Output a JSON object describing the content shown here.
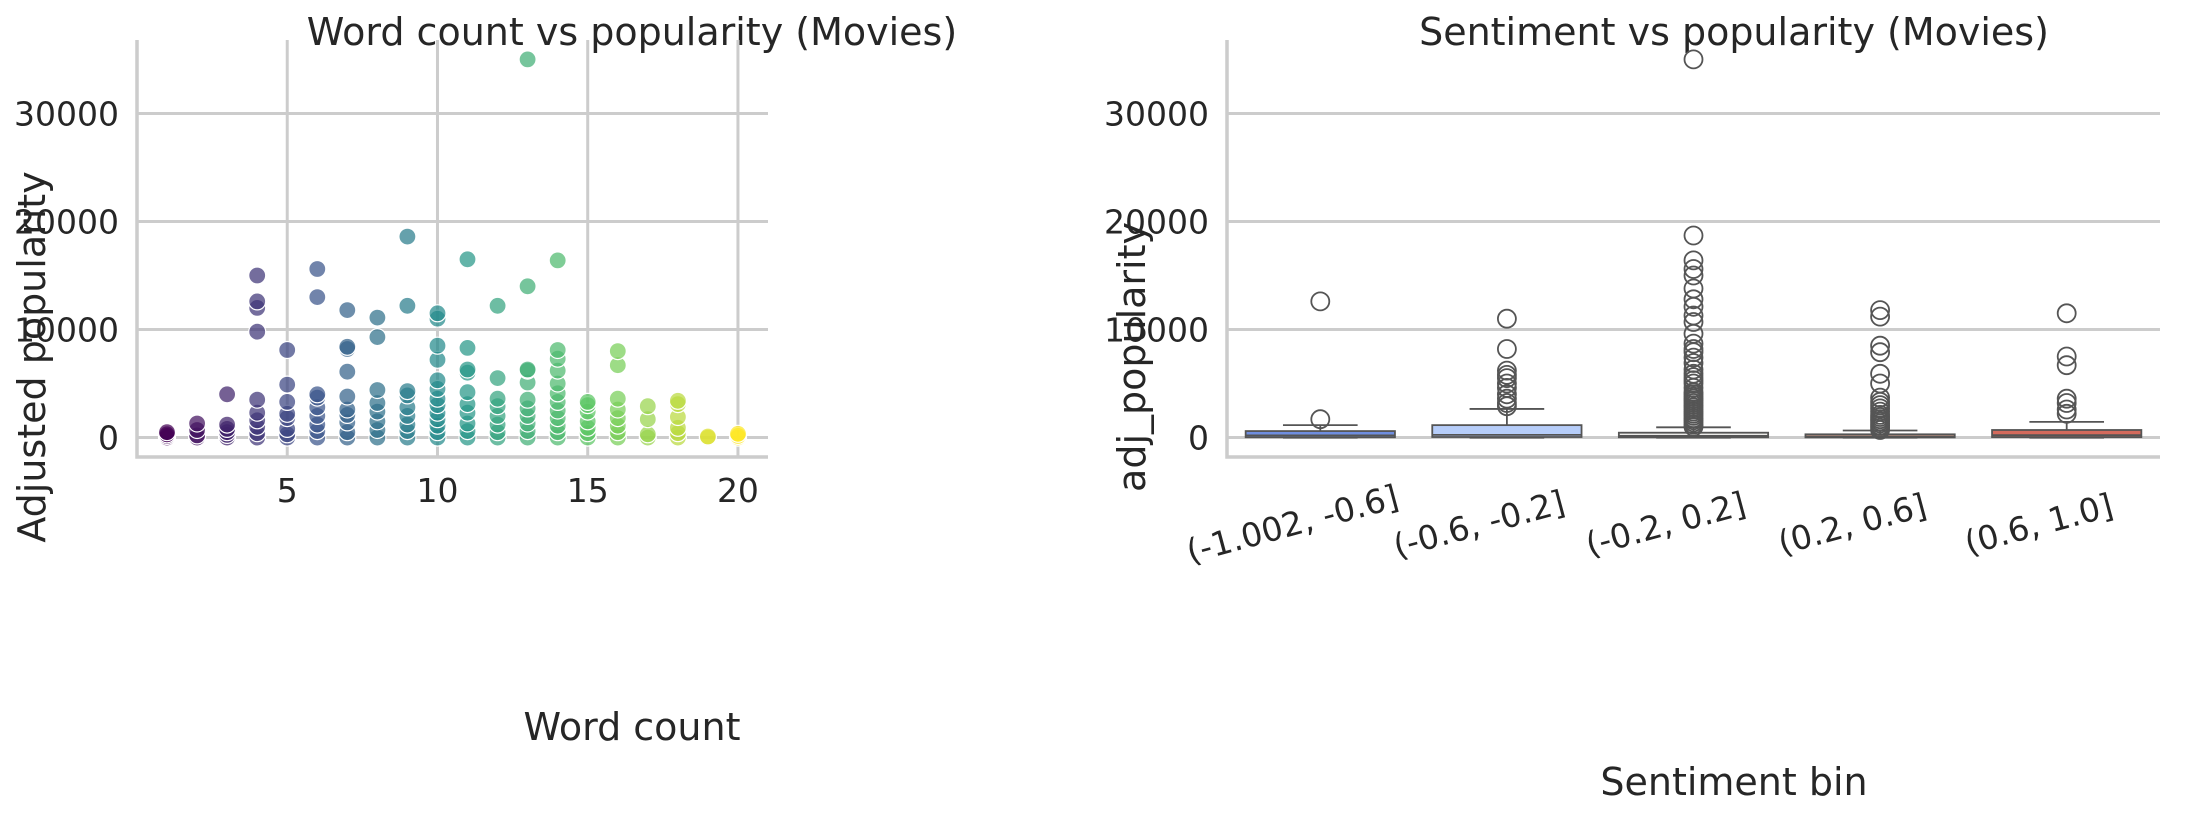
{
  "chart_data": [
    {
      "type": "scatter",
      "title": "Word count vs popularity (Movies)",
      "xlabel": "Word count",
      "ylabel": "Adjusted popularity",
      "xlim": [
        0,
        21
      ],
      "ylim": [
        -1800,
        36800
      ],
      "xticks": [
        5,
        10,
        15,
        20
      ],
      "yticks": [
        0,
        10000,
        20000,
        30000
      ],
      "grid": true,
      "colormap": "viridis",
      "x_range_for_color": [
        1,
        20
      ],
      "points": [
        {
          "x": 1,
          "y": 0
        },
        {
          "x": 1,
          "y": 150
        },
        {
          "x": 1,
          "y": 300
        },
        {
          "x": 1,
          "y": 500
        },
        {
          "x": 2,
          "y": 0
        },
        {
          "x": 2,
          "y": 200
        },
        {
          "x": 2,
          "y": 700
        },
        {
          "x": 2,
          "y": 1300
        },
        {
          "x": 3,
          "y": 0
        },
        {
          "x": 3,
          "y": 250
        },
        {
          "x": 3,
          "y": 500
        },
        {
          "x": 3,
          "y": 800
        },
        {
          "x": 3,
          "y": 1200
        },
        {
          "x": 3,
          "y": 4000
        },
        {
          "x": 4,
          "y": 0
        },
        {
          "x": 4,
          "y": 400
        },
        {
          "x": 4,
          "y": 1000
        },
        {
          "x": 4,
          "y": 1600
        },
        {
          "x": 4,
          "y": 2300
        },
        {
          "x": 4,
          "y": 3500
        },
        {
          "x": 4,
          "y": 9800
        },
        {
          "x": 4,
          "y": 12000
        },
        {
          "x": 4,
          "y": 12600
        },
        {
          "x": 4,
          "y": 15000
        },
        {
          "x": 5,
          "y": 0
        },
        {
          "x": 5,
          "y": 300
        },
        {
          "x": 5,
          "y": 800
        },
        {
          "x": 5,
          "y": 1800
        },
        {
          "x": 5,
          "y": 2200
        },
        {
          "x": 5,
          "y": 3300
        },
        {
          "x": 5,
          "y": 4900
        },
        {
          "x": 5,
          "y": 8100
        },
        {
          "x": 6,
          "y": 0
        },
        {
          "x": 6,
          "y": 600
        },
        {
          "x": 6,
          "y": 1200
        },
        {
          "x": 6,
          "y": 2000
        },
        {
          "x": 6,
          "y": 2800
        },
        {
          "x": 6,
          "y": 3700
        },
        {
          "x": 6,
          "y": 4000
        },
        {
          "x": 6,
          "y": 13000
        },
        {
          "x": 6,
          "y": 15600
        },
        {
          "x": 7,
          "y": 0
        },
        {
          "x": 7,
          "y": 500
        },
        {
          "x": 7,
          "y": 1400
        },
        {
          "x": 7,
          "y": 2100
        },
        {
          "x": 7,
          "y": 2600
        },
        {
          "x": 7,
          "y": 3800
        },
        {
          "x": 7,
          "y": 6100
        },
        {
          "x": 7,
          "y": 8200
        },
        {
          "x": 7,
          "y": 8400
        },
        {
          "x": 7,
          "y": 11800
        },
        {
          "x": 8,
          "y": 0
        },
        {
          "x": 8,
          "y": 700
        },
        {
          "x": 8,
          "y": 1500
        },
        {
          "x": 8,
          "y": 2400
        },
        {
          "x": 8,
          "y": 3200
        },
        {
          "x": 8,
          "y": 4400
        },
        {
          "x": 8,
          "y": 9300
        },
        {
          "x": 8,
          "y": 11100
        },
        {
          "x": 9,
          "y": 0
        },
        {
          "x": 9,
          "y": 600
        },
        {
          "x": 9,
          "y": 1200
        },
        {
          "x": 9,
          "y": 2000
        },
        {
          "x": 9,
          "y": 2800
        },
        {
          "x": 9,
          "y": 3900
        },
        {
          "x": 9,
          "y": 4300
        },
        {
          "x": 9,
          "y": 12200
        },
        {
          "x": 9,
          "y": 18600
        },
        {
          "x": 10,
          "y": 0
        },
        {
          "x": 10,
          "y": 500
        },
        {
          "x": 10,
          "y": 1100
        },
        {
          "x": 10,
          "y": 1700
        },
        {
          "x": 10,
          "y": 2300
        },
        {
          "x": 10,
          "y": 3000
        },
        {
          "x": 10,
          "y": 3600
        },
        {
          "x": 10,
          "y": 4500
        },
        {
          "x": 10,
          "y": 5300
        },
        {
          "x": 10,
          "y": 7200
        },
        {
          "x": 10,
          "y": 8500
        },
        {
          "x": 10,
          "y": 11000
        },
        {
          "x": 10,
          "y": 11500
        },
        {
          "x": 11,
          "y": 0
        },
        {
          "x": 11,
          "y": 600
        },
        {
          "x": 11,
          "y": 1300
        },
        {
          "x": 11,
          "y": 2300
        },
        {
          "x": 11,
          "y": 3100
        },
        {
          "x": 11,
          "y": 4200
        },
        {
          "x": 11,
          "y": 6000
        },
        {
          "x": 11,
          "y": 6300
        },
        {
          "x": 11,
          "y": 8300
        },
        {
          "x": 11,
          "y": 16500
        },
        {
          "x": 12,
          "y": 0
        },
        {
          "x": 12,
          "y": 500
        },
        {
          "x": 12,
          "y": 1200
        },
        {
          "x": 12,
          "y": 2000
        },
        {
          "x": 12,
          "y": 2900
        },
        {
          "x": 12,
          "y": 3600
        },
        {
          "x": 12,
          "y": 5500
        },
        {
          "x": 12,
          "y": 12200
        },
        {
          "x": 13,
          "y": 0
        },
        {
          "x": 13,
          "y": 600
        },
        {
          "x": 13,
          "y": 1300
        },
        {
          "x": 13,
          "y": 2000
        },
        {
          "x": 13,
          "y": 2700
        },
        {
          "x": 13,
          "y": 3500
        },
        {
          "x": 13,
          "y": 5100
        },
        {
          "x": 13,
          "y": 6200
        },
        {
          "x": 13,
          "y": 6300
        },
        {
          "x": 13,
          "y": 14000
        },
        {
          "x": 13,
          "y": 35000
        },
        {
          "x": 14,
          "y": 0
        },
        {
          "x": 14,
          "y": 500
        },
        {
          "x": 14,
          "y": 1100
        },
        {
          "x": 14,
          "y": 1800
        },
        {
          "x": 14,
          "y": 2500
        },
        {
          "x": 14,
          "y": 3300
        },
        {
          "x": 14,
          "y": 4100
        },
        {
          "x": 14,
          "y": 5000
        },
        {
          "x": 14,
          "y": 6200
        },
        {
          "x": 14,
          "y": 7300
        },
        {
          "x": 14,
          "y": 8100
        },
        {
          "x": 14,
          "y": 16400
        },
        {
          "x": 15,
          "y": 0
        },
        {
          "x": 15,
          "y": 400
        },
        {
          "x": 15,
          "y": 900
        },
        {
          "x": 15,
          "y": 1500
        },
        {
          "x": 15,
          "y": 2400
        },
        {
          "x": 15,
          "y": 3000
        },
        {
          "x": 15,
          "y": 3300
        },
        {
          "x": 16,
          "y": 0
        },
        {
          "x": 16,
          "y": 500
        },
        {
          "x": 16,
          "y": 1100
        },
        {
          "x": 16,
          "y": 1800
        },
        {
          "x": 16,
          "y": 2600
        },
        {
          "x": 16,
          "y": 3600
        },
        {
          "x": 16,
          "y": 6700
        },
        {
          "x": 16,
          "y": 8000
        },
        {
          "x": 17,
          "y": 0
        },
        {
          "x": 17,
          "y": 300
        },
        {
          "x": 17,
          "y": 1700
        },
        {
          "x": 17,
          "y": 2900
        },
        {
          "x": 18,
          "y": 0
        },
        {
          "x": 18,
          "y": 400
        },
        {
          "x": 18,
          "y": 900
        },
        {
          "x": 18,
          "y": 1900
        },
        {
          "x": 18,
          "y": 3100
        },
        {
          "x": 18,
          "y": 3400
        },
        {
          "x": 19,
          "y": 0
        },
        {
          "x": 19,
          "y": 100
        },
        {
          "x": 20,
          "y": 0
        },
        {
          "x": 20,
          "y": 150
        },
        {
          "x": 20,
          "y": 350
        }
      ]
    },
    {
      "type": "box",
      "title": "Sentiment vs popularity (Movies)",
      "xlabel": "Sentiment bin",
      "ylabel": "adj_popularity",
      "ylim": [
        -1800,
        36800
      ],
      "yticks": [
        0,
        10000,
        20000,
        30000
      ],
      "grid": true,
      "categories": [
        "(-1.002, -0.6]",
        "(-0.6, -0.2]",
        "(-0.2, 0.2]",
        "(0.2, 0.6]",
        "(0.6, 1.0]"
      ],
      "colors": [
        "#6f8ee0",
        "#b6cdf9",
        "#ebeae8",
        "#f2b39a",
        "#d46a5c"
      ],
      "boxes": [
        {
          "min": 0,
          "q1": 30,
          "median": 200,
          "q3": 600,
          "max": 1150,
          "outliers": [
            1700,
            12600
          ]
        },
        {
          "min": 0,
          "q1": 50,
          "median": 250,
          "q3": 1150,
          "max": 2650,
          "outliers": [
            2900,
            3200,
            3600,
            4000,
            4600,
            5000,
            5500,
            5800,
            6200,
            8200,
            11000
          ]
        },
        {
          "min": 0,
          "q1": 30,
          "median": 150,
          "q3": 450,
          "max": 950,
          "outliers": [
            1000,
            1200,
            1400,
            1600,
            1800,
            2000,
            2200,
            2400,
            2600,
            2800,
            3000,
            3200,
            3400,
            3600,
            3800,
            4000,
            4200,
            4600,
            5000,
            5300,
            5600,
            5900,
            6300,
            6900,
            7400,
            7900,
            8200,
            8700,
            9600,
            10700,
            11300,
            12100,
            12800,
            13800,
            15000,
            15600,
            16400,
            18700,
            35000
          ]
        },
        {
          "min": 0,
          "q1": 20,
          "median": 100,
          "q3": 300,
          "max": 650,
          "outliers": [
            700,
            900,
            1100,
            1300,
            1500,
            1700,
            1900,
            2100,
            2400,
            2700,
            3000,
            3300,
            3700,
            5000,
            5900,
            7900,
            8500,
            11200,
            11800
          ]
        },
        {
          "min": 0,
          "q1": 40,
          "median": 220,
          "q3": 700,
          "max": 1450,
          "outliers": [
            2200,
            2600,
            3200,
            3600,
            6700,
            7500,
            11500
          ]
        }
      ]
    }
  ]
}
